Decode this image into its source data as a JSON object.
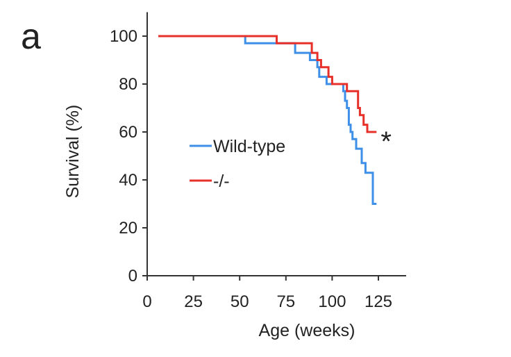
{
  "panel_label": "a",
  "chart_data": {
    "type": "line",
    "step": true,
    "title": "",
    "xlabel": "Age (weeks)",
    "ylabel": "Survival (%)",
    "xlim": [
      0,
      140
    ],
    "ylim": [
      0,
      110
    ],
    "xticks": [
      0,
      25,
      50,
      75,
      100,
      125
    ],
    "yticks": [
      0,
      20,
      40,
      60,
      80,
      100
    ],
    "grid": false,
    "legend_position": "center-left",
    "series": [
      {
        "name": "Wild-type",
        "color": "#3d8fe8",
        "points": [
          [
            6,
            100
          ],
          [
            53,
            100
          ],
          [
            53,
            97
          ],
          [
            70,
            97
          ],
          [
            80,
            97
          ],
          [
            80,
            93
          ],
          [
            88,
            93
          ],
          [
            88,
            90
          ],
          [
            92,
            90
          ],
          [
            92,
            87
          ],
          [
            93,
            87
          ],
          [
            93,
            83
          ],
          [
            97,
            83
          ],
          [
            97,
            80
          ],
          [
            106,
            80
          ],
          [
            106,
            77
          ],
          [
            107,
            77
          ],
          [
            107,
            73
          ],
          [
            108,
            73
          ],
          [
            108,
            70
          ],
          [
            109,
            70
          ],
          [
            109,
            63
          ],
          [
            110,
            63
          ],
          [
            110,
            60
          ],
          [
            111,
            60
          ],
          [
            111,
            57
          ],
          [
            113,
            57
          ],
          [
            113,
            53
          ],
          [
            116,
            53
          ],
          [
            116,
            47
          ],
          [
            118,
            47
          ],
          [
            118,
            43
          ],
          [
            122,
            43
          ],
          [
            122,
            30
          ],
          [
            124,
            30
          ]
        ]
      },
      {
        "name": "-/-",
        "color": "#e8302a",
        "points": [
          [
            6,
            100
          ],
          [
            70,
            100
          ],
          [
            70,
            97
          ],
          [
            89,
            97
          ],
          [
            89,
            93
          ],
          [
            92,
            93
          ],
          [
            92,
            90
          ],
          [
            94,
            90
          ],
          [
            94,
            87
          ],
          [
            98,
            87
          ],
          [
            98,
            83
          ],
          [
            100,
            83
          ],
          [
            100,
            80
          ],
          [
            108,
            80
          ],
          [
            108,
            77
          ],
          [
            114,
            77
          ],
          [
            114,
            70
          ],
          [
            115,
            70
          ],
          [
            115,
            67
          ],
          [
            117,
            67
          ],
          [
            117,
            63
          ],
          [
            119,
            63
          ],
          [
            119,
            60
          ],
          [
            124,
            60
          ]
        ]
      }
    ],
    "annotations": [
      {
        "text": "*",
        "x": 130,
        "y": 58
      }
    ]
  }
}
